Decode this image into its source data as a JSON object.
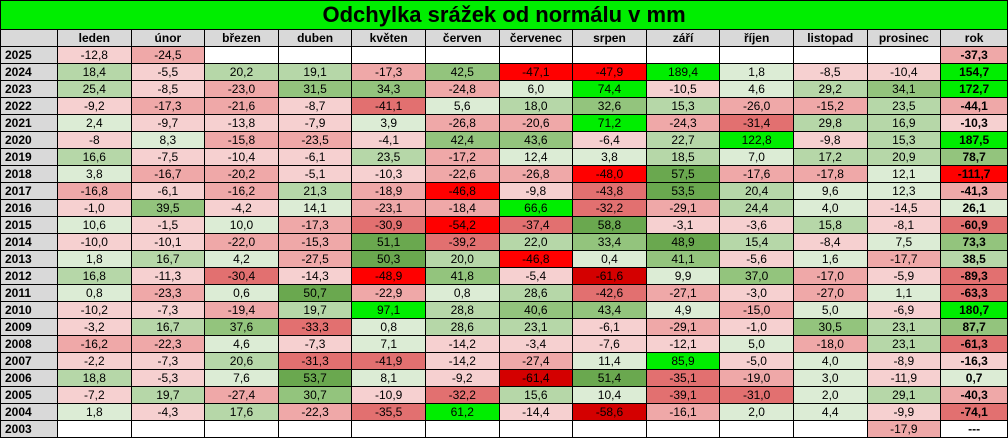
{
  "title": "Odchylka srážek od normálu v mm",
  "table": {
    "header": [
      "leden",
      "únor",
      "březen",
      "duben",
      "květen",
      "červen",
      "červenec",
      "srpen",
      "září",
      "říjen",
      "listopad",
      "prosinec",
      "rok"
    ],
    "rows": [
      {
        "year": "2025",
        "cells": [
          "-12,8",
          "-24,5",
          null,
          null,
          null,
          null,
          null,
          null,
          null,
          null,
          null,
          null,
          "-37,3"
        ]
      },
      {
        "year": "2024",
        "cells": [
          "18,4",
          "-5,5",
          "20,2",
          "19,1",
          "-17,3",
          "42,5",
          "-47,1",
          "-47,9",
          "189,4",
          "1,8",
          "-8,5",
          "-10,4",
          "154,7"
        ]
      },
      {
        "year": "2023",
        "cells": [
          "25,4",
          "-8,5",
          "-23,0",
          "31,5",
          "34,3",
          "-24,8",
          "6,0",
          "74,4",
          "-10,5",
          "4,6",
          "29,2",
          "34,1",
          "172,7"
        ]
      },
      {
        "year": "2022",
        "cells": [
          "-9,2",
          "-17,3",
          "-21,6",
          "-8,7",
          "-41,1",
          "5,6",
          "18,0",
          "32,6",
          "15,3",
          "-26,0",
          "-15,2",
          "23,5",
          "-44,1"
        ]
      },
      {
        "year": "2021",
        "cells": [
          "2,4",
          "-9,7",
          "-13,8",
          "-7,9",
          "3,9",
          "-26,8",
          "-20,6",
          "71,2",
          "-24,3",
          "-31,4",
          "29,8",
          "16,9",
          "-10,3"
        ]
      },
      {
        "year": "2020",
        "cells": [
          "-8",
          "8,3",
          "-15,8",
          "-23,5",
          "-4,1",
          "42,4",
          "43,6",
          "-6,4",
          "22,7",
          "122,8",
          "-9,8",
          "15,3",
          "187,5"
        ]
      },
      {
        "year": "2019",
        "cells": [
          "16,6",
          "-7,5",
          "-10,4",
          "-6,1",
          "23,5",
          "-17,2",
          "12,4",
          "3,8",
          "18,5",
          "7,0",
          "17,2",
          "20,9",
          "78,7"
        ]
      },
      {
        "year": "2018",
        "cells": [
          "3,8",
          "-16,7",
          "-20,2",
          "-5,1",
          "-10,3",
          "-22,6",
          "-26,8",
          "-48,0",
          "57,5",
          "-17,6",
          "-17,8",
          "12,1",
          "-111,7"
        ]
      },
      {
        "year": "2017",
        "cells": [
          "-16,8",
          "-6,1",
          "-16,2",
          "21,3",
          "-18,9",
          "-46,8",
          "-9,8",
          "-43,8",
          "53,5",
          "20,4",
          "9,6",
          "12,3",
          "-41,3"
        ]
      },
      {
        "year": "2016",
        "cells": [
          "-1,0",
          "39,5",
          "-4,2",
          "14,1",
          "-23,1",
          "-18,4",
          "66,6",
          "-32,2",
          "-29,1",
          "24,4",
          "4,0",
          "-14,5",
          "26,1"
        ]
      },
      {
        "year": "2015",
        "cells": [
          "10,6",
          "-1,5",
          "10,0",
          "-17,3",
          "-30,9",
          "-54,2",
          "-37,4",
          "58,8",
          "-3,1",
          "-3,6",
          "15,8",
          "-8,1",
          "-60,9"
        ]
      },
      {
        "year": "2014",
        "cells": [
          "-10,0",
          "-10,1",
          "-22,0",
          "-15,3",
          "51,1",
          "-39,2",
          "22,0",
          "33,4",
          "48,9",
          "15,4",
          "-8,4",
          "7,5",
          "73,3"
        ]
      },
      {
        "year": "2013",
        "cells": [
          "1,8",
          "16,7",
          "4,2",
          "-27,5",
          "50,3",
          "20,0",
          "-46,8",
          "0,4",
          "41,1",
          "-5,6",
          "1,6",
          "-17,7",
          "38,5"
        ]
      },
      {
        "year": "2012",
        "cells": [
          "16,8",
          "-11,3",
          "-30,4",
          "-14,3",
          "-48,9",
          "41,8",
          "-5,4",
          "-61,6",
          "9,9",
          "37,0",
          "-17,0",
          "-5,9",
          "-89,3"
        ]
      },
      {
        "year": "2011",
        "cells": [
          "0,8",
          "-23,3",
          "0,6",
          "50,7",
          "-22,9",
          "0,8",
          "28,6",
          "-42,6",
          "-27,1",
          "-3,0",
          "-27,0",
          "1,1",
          "-63,3"
        ]
      },
      {
        "year": "2010",
        "cells": [
          "-10,2",
          "-7,3",
          "-19,4",
          "19,7",
          "97,1",
          "28,8",
          "40,6",
          "43,4",
          "4,9",
          "-15,0",
          "5,0",
          "-6,9",
          "180,7"
        ]
      },
      {
        "year": "2009",
        "cells": [
          "-3,2",
          "16,7",
          "37,6",
          "-33,3",
          "0,8",
          "28,6",
          "23,1",
          "-6,1",
          "-29,1",
          "-1,0",
          "30,5",
          "23,1",
          "87,7"
        ]
      },
      {
        "year": "2008",
        "cells": [
          "-16,2",
          "-22,3",
          "4,6",
          "-7,3",
          "7,1",
          "-14,2",
          "-3,4",
          "-7,6",
          "-12,1",
          "5,0",
          "-18,0",
          "23,1",
          "-61,3"
        ]
      },
      {
        "year": "2007",
        "cells": [
          "-2,2",
          "-7,3",
          "20,6",
          "-31,3",
          "-41,9",
          "-14,2",
          "-27,4",
          "11,4",
          "85,9",
          "-5,0",
          "4,0",
          "-8,9",
          "-16,3"
        ]
      },
      {
        "year": "2006",
        "cells": [
          "18,8",
          "-5,3",
          "7,6",
          "53,7",
          "8,1",
          "-9,2",
          "-61,4",
          "51,4",
          "-35,1",
          "-19,0",
          "3,0",
          "-11,9",
          "0,7"
        ]
      },
      {
        "year": "2005",
        "cells": [
          "-7,2",
          "19,7",
          "-27,4",
          "30,7",
          "-10,9",
          "-32,2",
          "15,6",
          "10,4",
          "-39,1",
          "-31,0",
          "2,0",
          "29,1",
          "-40,3"
        ]
      },
      {
        "year": "2004",
        "cells": [
          "1,8",
          "-4,3",
          "17,6",
          "-22,3",
          "-35,5",
          "61,2",
          "-14,4",
          "-58,6",
          "-16,1",
          "2,0",
          "4,4",
          "-9,9",
          "-74,1"
        ]
      },
      {
        "year": "2003",
        "cells": [
          null,
          null,
          null,
          null,
          null,
          null,
          null,
          null,
          null,
          null,
          null,
          "-17,9",
          "---"
        ]
      }
    ]
  }
}
